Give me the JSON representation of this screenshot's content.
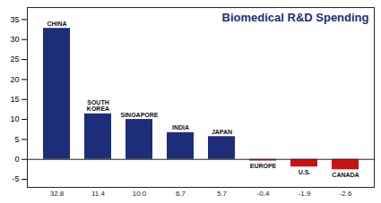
{
  "chart_data": {
    "type": "bar",
    "title": "Biomedical R&D Spending",
    "categories": [
      "CHINA",
      "SOUTH\nKOREA",
      "SINGAPORE",
      "INDIA",
      "JAPAN",
      "EUROPE",
      "U.S.",
      "CANADA"
    ],
    "values": [
      32.8,
      11.4,
      10.0,
      6.7,
      5.7,
      -0.4,
      -1.9,
      -2.6
    ],
    "value_labels": [
      "32.8",
      "11.4",
      "10.0",
      "6.7",
      "5.7",
      "-0.4",
      "-1.9",
      "-2.6"
    ],
    "data_labels": true,
    "colors": [
      "#1e2d78",
      "#1e2d78",
      "#1e2d78",
      "#1e2d78",
      "#1e2d78",
      "#cc1111",
      "#cc1111",
      "#cc1111"
    ],
    "ylim": [
      -7,
      38
    ],
    "yticks": [
      -5,
      0,
      5,
      10,
      15,
      20,
      25,
      30,
      35
    ],
    "grid": false,
    "tick_labels": "y"
  }
}
